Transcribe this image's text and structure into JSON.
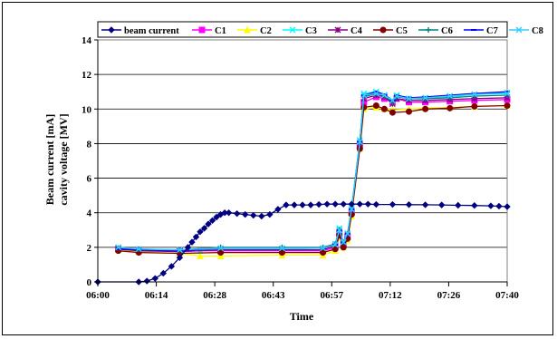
{
  "chart_data": {
    "type": "line",
    "title": "",
    "xlabel": "Time",
    "ylabel": [
      "Beam current [mA]",
      "cavity voltage [MV]"
    ],
    "x_ticks": [
      "06:00",
      "06:14",
      "06:28",
      "06:43",
      "06:57",
      "07:12",
      "07:26",
      "07:40"
    ],
    "x_range": [
      "06:00",
      "07:40"
    ],
    "y_ticks": [
      "0",
      "2",
      "4",
      "6",
      "8",
      "10",
      "12",
      "14"
    ],
    "ylim": [
      0,
      14
    ],
    "grid": "horizontal",
    "legend_position": "top",
    "series": [
      {
        "name": "beam current",
        "color": "#000080",
        "marker": "diamond",
        "points": [
          [
            "06:00",
            0
          ],
          [
            "06:10",
            0
          ],
          [
            "06:12",
            0.05
          ],
          [
            "06:14",
            0.2
          ],
          [
            "06:16",
            0.5
          ],
          [
            "06:18",
            0.9
          ],
          [
            "06:20",
            1.4
          ],
          [
            "06:22",
            2.0
          ],
          [
            "06:23",
            2.3
          ],
          [
            "06:24",
            2.6
          ],
          [
            "06:25",
            2.9
          ],
          [
            "06:26",
            3.1
          ],
          [
            "06:27",
            3.35
          ],
          [
            "06:28",
            3.55
          ],
          [
            "06:29",
            3.75
          ],
          [
            "06:30",
            3.9
          ],
          [
            "06:31",
            4.0
          ],
          [
            "06:32",
            4.0
          ],
          [
            "06:34",
            3.95
          ],
          [
            "06:36",
            3.9
          ],
          [
            "06:38",
            3.85
          ],
          [
            "06:40",
            3.8
          ],
          [
            "06:42",
            3.9
          ],
          [
            "06:44",
            4.2
          ],
          [
            "06:46",
            4.45
          ],
          [
            "06:48",
            4.45
          ],
          [
            "06:50",
            4.45
          ],
          [
            "06:52",
            4.45
          ],
          [
            "06:54",
            4.48
          ],
          [
            "06:56",
            4.5
          ],
          [
            "06:58",
            4.5
          ],
          [
            "07:00",
            4.5
          ],
          [
            "07:02",
            4.5
          ],
          [
            "07:04",
            4.5
          ],
          [
            "07:06",
            4.5
          ],
          [
            "07:08",
            4.48
          ],
          [
            "07:12",
            4.48
          ],
          [
            "07:16",
            4.47
          ],
          [
            "07:20",
            4.46
          ],
          [
            "07:24",
            4.45
          ],
          [
            "07:28",
            4.43
          ],
          [
            "07:32",
            4.42
          ],
          [
            "07:36",
            4.4
          ],
          [
            "07:38",
            4.38
          ],
          [
            "07:40",
            4.35
          ]
        ]
      },
      {
        "name": "C1",
        "color": "#ff00ff",
        "marker": "square",
        "points": [
          [
            "06:05",
            1.9
          ],
          [
            "06:10",
            1.85
          ],
          [
            "06:20",
            1.8
          ],
          [
            "06:30",
            1.8
          ],
          [
            "06:45",
            1.8
          ],
          [
            "06:55",
            1.8
          ],
          [
            "06:58",
            2.0
          ],
          [
            "06:59",
            2.8
          ],
          [
            "07:00",
            2.2
          ],
          [
            "07:01",
            2.6
          ],
          [
            "07:02",
            4.0
          ],
          [
            "07:04",
            7.9
          ],
          [
            "07:05",
            10.4
          ],
          [
            "07:08",
            10.7
          ],
          [
            "07:10",
            10.6
          ],
          [
            "07:12",
            10.4
          ],
          [
            "07:13",
            10.6
          ],
          [
            "07:16",
            10.4
          ],
          [
            "07:20",
            10.4
          ],
          [
            "07:26",
            10.45
          ],
          [
            "07:32",
            10.5
          ],
          [
            "07:40",
            10.55
          ]
        ]
      },
      {
        "name": "C2",
        "color": "#ffff00",
        "marker": "triangle",
        "points": [
          [
            "06:05",
            1.85
          ],
          [
            "06:10",
            1.75
          ],
          [
            "06:20",
            1.65
          ],
          [
            "06:25",
            1.5
          ],
          [
            "06:30",
            1.5
          ],
          [
            "06:45",
            1.55
          ],
          [
            "06:55",
            1.55
          ],
          [
            "06:58",
            1.8
          ],
          [
            "06:59",
            2.6
          ],
          [
            "07:00",
            2.0
          ],
          [
            "07:01",
            2.4
          ],
          [
            "07:02",
            3.8
          ],
          [
            "07:04",
            7.7
          ],
          [
            "07:05",
            10.0
          ],
          [
            "07:08",
            10.1
          ],
          [
            "07:10",
            10.0
          ],
          [
            "07:12",
            9.95
          ],
          [
            "07:16",
            10.0
          ],
          [
            "07:20",
            10.05
          ],
          [
            "07:26",
            10.1
          ],
          [
            "07:32",
            10.15
          ],
          [
            "07:40",
            10.2
          ]
        ]
      },
      {
        "name": "C3",
        "color": "#00ffff",
        "marker": "x",
        "points": [
          [
            "06:05",
            1.95
          ],
          [
            "06:10",
            1.85
          ],
          [
            "06:20",
            1.75
          ],
          [
            "06:25",
            1.8
          ],
          [
            "06:30",
            1.9
          ],
          [
            "06:45",
            1.9
          ],
          [
            "06:55",
            1.95
          ],
          [
            "06:58",
            2.2
          ],
          [
            "06:59",
            3.1
          ],
          [
            "07:00",
            2.3
          ],
          [
            "07:01",
            2.8
          ],
          [
            "07:02",
            4.3
          ],
          [
            "07:04",
            8.2
          ],
          [
            "07:05",
            10.9
          ],
          [
            "07:08",
            11.0
          ],
          [
            "07:10",
            10.8
          ],
          [
            "07:12",
            10.5
          ],
          [
            "07:13",
            10.8
          ],
          [
            "07:16",
            10.6
          ],
          [
            "07:20",
            10.6
          ],
          [
            "07:26",
            10.7
          ],
          [
            "07:32",
            10.85
          ],
          [
            "07:40",
            10.95
          ]
        ]
      },
      {
        "name": "C4",
        "color": "#800080",
        "marker": "star",
        "points": [
          [
            "06:05",
            1.9
          ],
          [
            "06:10",
            1.8
          ],
          [
            "06:20",
            1.75
          ],
          [
            "06:30",
            1.85
          ],
          [
            "06:45",
            1.85
          ],
          [
            "06:55",
            1.85
          ],
          [
            "06:58",
            2.1
          ],
          [
            "06:59",
            2.9
          ],
          [
            "07:00",
            2.2
          ],
          [
            "07:01",
            2.7
          ],
          [
            "07:02",
            4.1
          ],
          [
            "07:04",
            8.0
          ],
          [
            "07:05",
            10.6
          ],
          [
            "07:08",
            10.8
          ],
          [
            "07:10",
            10.7
          ],
          [
            "07:12",
            10.3
          ],
          [
            "07:13",
            10.6
          ],
          [
            "07:16",
            10.5
          ],
          [
            "07:20",
            10.5
          ],
          [
            "07:26",
            10.55
          ],
          [
            "07:32",
            10.6
          ],
          [
            "07:40",
            10.65
          ]
        ]
      },
      {
        "name": "C5",
        "color": "#800000",
        "marker": "circle",
        "points": [
          [
            "06:05",
            1.8
          ],
          [
            "06:10",
            1.7
          ],
          [
            "06:20",
            1.65
          ],
          [
            "06:30",
            1.7
          ],
          [
            "06:45",
            1.7
          ],
          [
            "06:55",
            1.7
          ],
          [
            "06:58",
            1.9
          ],
          [
            "06:59",
            2.7
          ],
          [
            "07:00",
            2.0
          ],
          [
            "07:01",
            2.5
          ],
          [
            "07:02",
            3.9
          ],
          [
            "07:04",
            7.7
          ],
          [
            "07:05",
            10.1
          ],
          [
            "07:08",
            10.2
          ],
          [
            "07:10",
            10.0
          ],
          [
            "07:12",
            9.8
          ],
          [
            "07:16",
            9.85
          ],
          [
            "07:20",
            10.0
          ],
          [
            "07:26",
            10.05
          ],
          [
            "07:32",
            10.15
          ],
          [
            "07:40",
            10.2
          ]
        ]
      },
      {
        "name": "C6",
        "color": "#008080",
        "marker": "plus",
        "points": [
          [
            "06:05",
            1.95
          ],
          [
            "06:10",
            1.9
          ],
          [
            "06:20",
            1.85
          ],
          [
            "06:30",
            2.0
          ],
          [
            "06:45",
            2.0
          ],
          [
            "06:55",
            2.0
          ],
          [
            "06:58",
            2.2
          ],
          [
            "06:59",
            3.0
          ],
          [
            "07:00",
            2.3
          ],
          [
            "07:01",
            2.8
          ],
          [
            "07:02",
            4.2
          ],
          [
            "07:04",
            8.1
          ],
          [
            "07:05",
            10.7
          ],
          [
            "07:08",
            10.9
          ],
          [
            "07:10",
            10.75
          ],
          [
            "07:12",
            10.4
          ],
          [
            "07:13",
            10.7
          ],
          [
            "07:16",
            10.6
          ],
          [
            "07:20",
            10.6
          ],
          [
            "07:26",
            10.65
          ],
          [
            "07:32",
            10.75
          ],
          [
            "07:40",
            10.8
          ]
        ]
      },
      {
        "name": "C7",
        "color": "#0000ff",
        "marker": "dash",
        "points": [
          [
            "06:05",
            1.9
          ],
          [
            "06:10",
            1.85
          ],
          [
            "06:20",
            1.8
          ],
          [
            "06:30",
            1.95
          ],
          [
            "06:45",
            1.95
          ],
          [
            "06:55",
            1.95
          ],
          [
            "06:58",
            2.15
          ],
          [
            "06:59",
            2.95
          ],
          [
            "07:00",
            2.25
          ],
          [
            "07:01",
            2.75
          ],
          [
            "07:02",
            4.2
          ],
          [
            "07:04",
            8.1
          ],
          [
            "07:05",
            10.8
          ],
          [
            "07:08",
            11.0
          ],
          [
            "07:10",
            10.85
          ],
          [
            "07:12",
            10.5
          ],
          [
            "07:13",
            10.8
          ],
          [
            "07:16",
            10.65
          ],
          [
            "07:20",
            10.7
          ],
          [
            "07:26",
            10.8
          ],
          [
            "07:32",
            10.9
          ],
          [
            "07:40",
            11.0
          ]
        ]
      },
      {
        "name": "C8",
        "color": "#33ccff",
        "marker": "x",
        "points": [
          [
            "06:05",
            2.0
          ],
          [
            "06:10",
            1.9
          ],
          [
            "06:20",
            1.85
          ],
          [
            "06:30",
            1.95
          ],
          [
            "06:45",
            1.95
          ],
          [
            "06:55",
            1.95
          ],
          [
            "06:58",
            2.15
          ],
          [
            "06:59",
            3.0
          ],
          [
            "07:00",
            2.3
          ],
          [
            "07:01",
            2.8
          ],
          [
            "07:02",
            4.2
          ],
          [
            "07:04",
            8.1
          ],
          [
            "07:05",
            10.8
          ],
          [
            "07:08",
            10.9
          ],
          [
            "07:10",
            10.8
          ],
          [
            "07:12",
            10.5
          ],
          [
            "07:13",
            10.75
          ],
          [
            "07:16",
            10.6
          ],
          [
            "07:20",
            10.65
          ],
          [
            "07:26",
            10.75
          ],
          [
            "07:32",
            10.85
          ],
          [
            "07:40",
            10.9
          ]
        ]
      }
    ]
  }
}
